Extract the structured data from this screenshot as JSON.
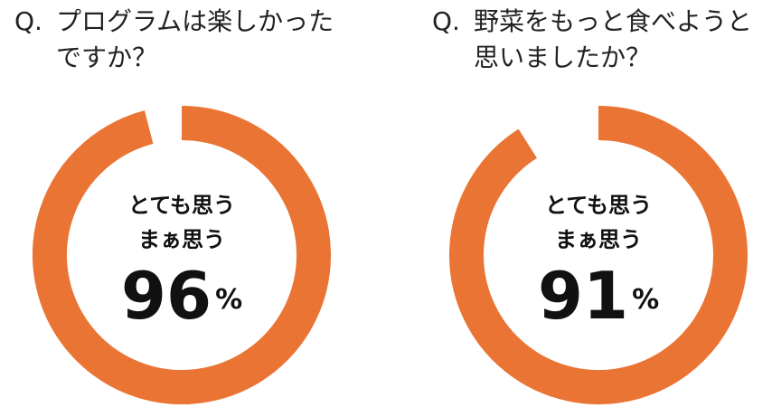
{
  "chart_data": [
    {
      "type": "donut",
      "marker": "Q.",
      "title": "プログラムは楽しかったですか？",
      "center_labels": [
        "とても思う",
        "まぁ思う"
      ],
      "values": [
        96
      ],
      "unit": "%",
      "total": 100,
      "color": "#ea7434"
    },
    {
      "type": "donut",
      "marker": "Q.",
      "title": "野菜をもっと食べようと思いましたか？",
      "center_labels": [
        "とても思う",
        "まぁ思う"
      ],
      "values": [
        91
      ],
      "unit": "%",
      "total": 100,
      "color": "#ea7434"
    }
  ]
}
